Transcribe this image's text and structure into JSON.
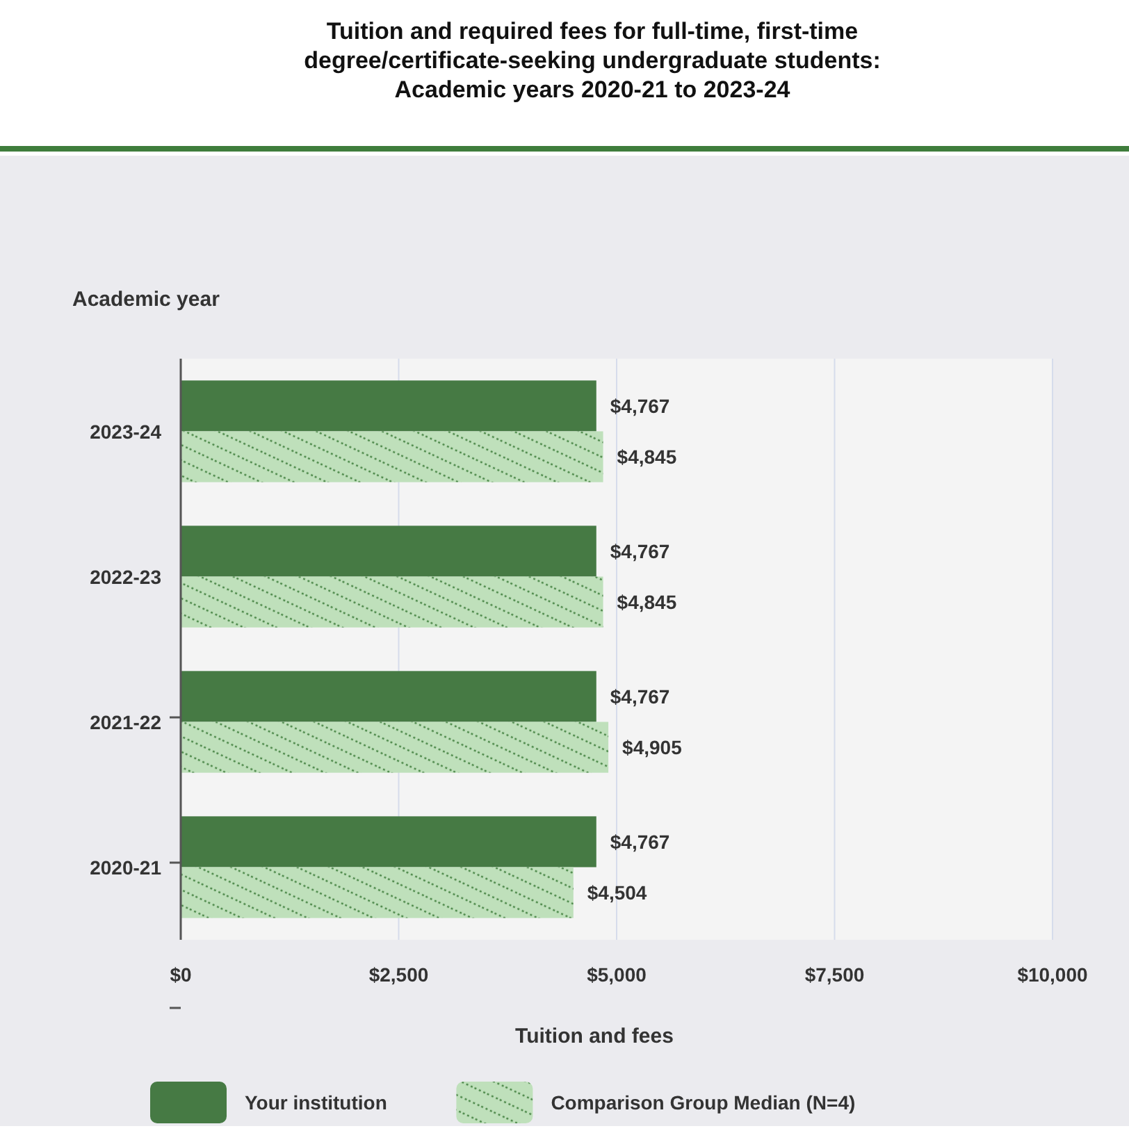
{
  "chart_data": {
    "type": "bar",
    "orientation": "horizontal",
    "title": "Tuition and required fees for full-time, first-time\ndegree/certificate-seeking undergraduate students:\nAcademic years 2020-21 to 2023-24",
    "ylabel": "Academic year",
    "xlabel": "Tuition and fees",
    "categories": [
      "2023-24",
      "2022-23",
      "2021-22",
      "2020-21"
    ],
    "series": [
      {
        "name": "Your institution",
        "color": "#467a44",
        "values": [
          4767,
          4767,
          4767,
          4767
        ],
        "value_labels": [
          "$4,767",
          "$4,767",
          "$4,767",
          "$4,767"
        ]
      },
      {
        "name": "Comparison Group Median (N=4)",
        "color": "#bfe0bb",
        "values": [
          4845,
          4845,
          4905,
          4504
        ],
        "value_labels": [
          "$4,845",
          "$4,845",
          "$4,905",
          "$4,504"
        ]
      }
    ],
    "xlim": [
      0,
      10000
    ],
    "xticks": [
      {
        "value": 0,
        "label": "$0"
      },
      {
        "value": 2500,
        "label": "$2,500"
      },
      {
        "value": 5000,
        "label": "$5,000"
      },
      {
        "value": 7500,
        "label": "$7,500"
      },
      {
        "value": 10000,
        "label": "$10,000"
      }
    ],
    "grid": "x",
    "legend": "bottom"
  }
}
